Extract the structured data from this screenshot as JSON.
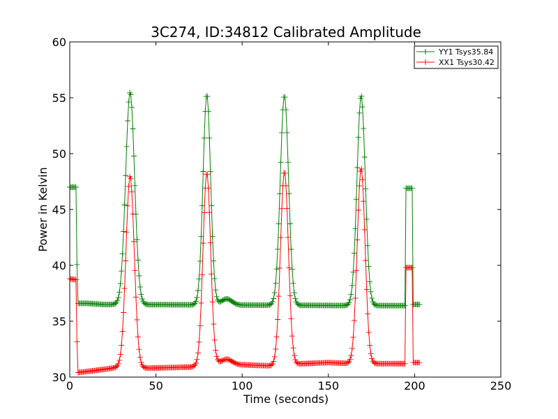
{
  "chart_data": {
    "type": "line",
    "title": "3C274, ID:34812 Calibrated Amplitude",
    "xlabel": "Time (seconds)",
    "ylabel": "Power in Kelvin",
    "xlim": [
      0,
      250
    ],
    "ylim": [
      30,
      60
    ],
    "xticks": [
      "0",
      "50",
      "100",
      "150",
      "200",
      "250"
    ],
    "yticks": [
      "30",
      "35",
      "40",
      "45",
      "50",
      "55",
      "60"
    ],
    "grid": false,
    "legend_position": "top-right",
    "marker": "+",
    "series": [
      {
        "name": "YY1 Tsys35.84",
        "color": "#008000",
        "base": [
          [
            0,
            47.0
          ],
          [
            4,
            47.0
          ],
          [
            4.3,
            36.6
          ],
          [
            10,
            36.6
          ],
          [
            20,
            36.5
          ],
          [
            29,
            36.5
          ],
          [
            165,
            36.4
          ],
          [
            190,
            36.4
          ],
          [
            194.5,
            36.4
          ],
          [
            194.6,
            46.9
          ],
          [
            199,
            46.9
          ],
          [
            199.1,
            36.5
          ],
          [
            203,
            36.5
          ]
        ],
        "peaks": [
          {
            "center": 35,
            "height": 55.5,
            "sigma": 2.6
          },
          {
            "center": 79.5,
            "height": 55.3,
            "sigma": 2.2
          },
          {
            "center": 91,
            "height": 37.0,
            "sigma": 3.0
          },
          {
            "center": 124.5,
            "height": 55.2,
            "sigma": 2.4
          },
          {
            "center": 169,
            "height": 55.2,
            "sigma": 2.4
          }
        ]
      },
      {
        "name": "XX1 Tsys30.42",
        "color": "#ff0000",
        "base": [
          [
            0,
            38.8
          ],
          [
            4,
            38.7
          ],
          [
            4.3,
            30.4
          ],
          [
            10,
            30.5
          ],
          [
            20,
            30.7
          ],
          [
            29,
            30.9
          ],
          [
            35,
            30.9
          ],
          [
            45,
            30.8
          ],
          [
            70,
            30.9
          ],
          [
            85,
            31.2
          ],
          [
            100,
            31.1
          ],
          [
            118,
            31.0
          ],
          [
            135,
            31.2
          ],
          [
            150,
            31.3
          ],
          [
            165,
            31.2
          ],
          [
            180,
            31.2
          ],
          [
            194.5,
            31.2
          ],
          [
            194.6,
            39.8
          ],
          [
            199,
            39.8
          ],
          [
            199.1,
            31.3
          ],
          [
            203,
            31.3
          ]
        ],
        "peaks": [
          {
            "center": 35,
            "height": 48.0,
            "sigma": 2.4
          },
          {
            "center": 79.5,
            "height": 48.3,
            "sigma": 2.2
          },
          {
            "center": 91,
            "height": 31.6,
            "sigma": 3.0
          },
          {
            "center": 124.5,
            "height": 48.4,
            "sigma": 2.3
          },
          {
            "center": 169,
            "height": 48.7,
            "sigma": 2.3
          }
        ]
      }
    ]
  }
}
